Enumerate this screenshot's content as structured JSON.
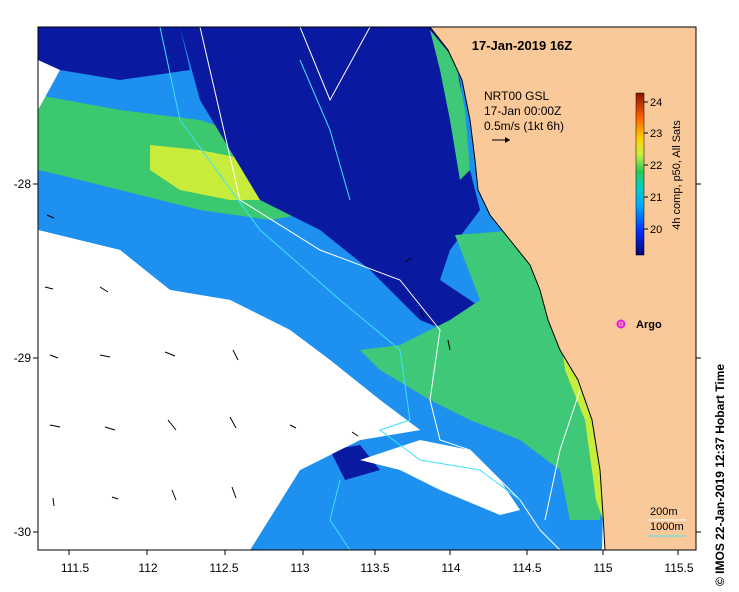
{
  "map": {
    "title": "17-Jan-2019 16Z",
    "current_legend": {
      "source": "NRT00 GSL",
      "time": "17-Jan 00:00Z",
      "scale": "0.5m/s (1kt 6h)"
    },
    "colorbar": {
      "label": "4h comp, p50, All Sats",
      "ticks": [
        "20",
        "21",
        "22",
        "23",
        "24"
      ],
      "range": [
        19.5,
        24.4
      ]
    },
    "argo_label": "Argo",
    "isobaths": {
      "shallow": "200m",
      "deep": "1000m"
    },
    "x_ticks": [
      "111.5",
      "112",
      "112.5",
      "113",
      "113.5",
      "114",
      "114.5",
      "115",
      "115.5"
    ],
    "y_ticks": [
      "-28",
      "-29",
      "-30"
    ],
    "credit": "© IMOS 22-Jan-2019 12:37 Hobart Time",
    "colors": {
      "land": "#fac99a",
      "cold": "#00008f",
      "cool": "#0078ff",
      "mid": "#3cc86e",
      "warm": "#d2f03c",
      "hot": "#ffb400",
      "argo": "#e020e0",
      "isobath200": "#ffffff",
      "isobath1000": "#40e0ff"
    }
  }
}
